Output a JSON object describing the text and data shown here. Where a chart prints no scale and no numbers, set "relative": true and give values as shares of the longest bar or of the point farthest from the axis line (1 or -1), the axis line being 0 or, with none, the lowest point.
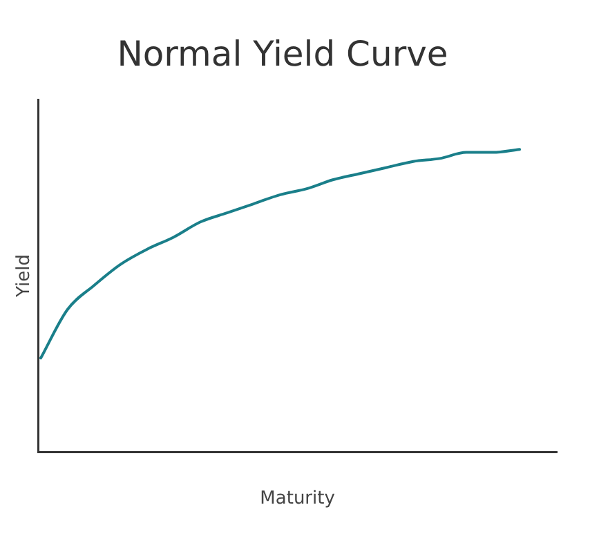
{
  "chart_data": {
    "type": "line",
    "title": "Normal Yield Curve",
    "xlabel": "Maturity",
    "ylabel": "Yield",
    "relative": true,
    "categories": [
      null,
      null,
      null,
      null,
      null,
      null,
      null,
      null,
      null,
      null,
      null,
      null,
      null,
      null,
      null,
      null,
      null,
      null,
      null
    ],
    "series": [
      {
        "color": "#1a7f8a",
        "values": [
          0.31,
          0.47,
          0.55,
          0.62,
          0.67,
          0.71,
          0.76,
          0.79,
          0.82,
          0.85,
          0.87,
          0.9,
          0.92,
          0.94,
          0.96,
          0.97,
          0.99,
          0.99,
          1
        ]
      }
    ],
    "grid": false,
    "legend": false,
    "marker": "none",
    "line_style": "solid"
  }
}
